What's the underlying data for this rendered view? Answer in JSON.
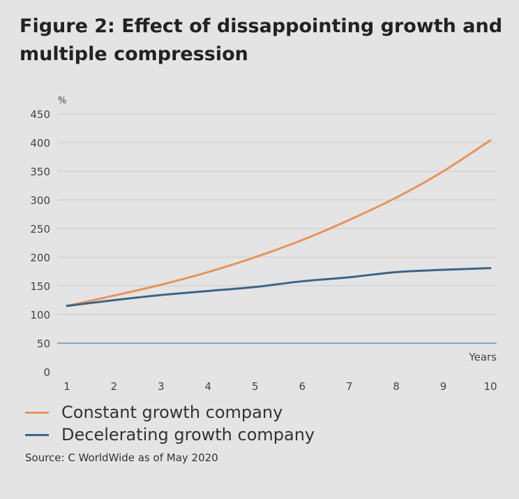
{
  "title": "Figure 2: Effect of dissappointing growth and multiple compression",
  "source": "Source: C WorldWide as of May 2020",
  "chart_data": {
    "type": "line",
    "title": "Figure 2: Effect of dissappointing growth and multiple compression",
    "ylabel": "%",
    "xlabel": "Years",
    "ylim": [
      0,
      450
    ],
    "yticks": [
      0,
      50,
      100,
      150,
      200,
      250,
      300,
      350,
      400,
      450
    ],
    "x": [
      1,
      2,
      3,
      4,
      5,
      6,
      7,
      8,
      9,
      10
    ],
    "grid": true,
    "legend_position": "bottom",
    "series": [
      {
        "name": "Constant growth company",
        "color": "#e8935c",
        "values": [
          115,
          133,
          152,
          174,
          200,
          230,
          265,
          304,
          350,
          404
        ]
      },
      {
        "name": "Decelerating growth company",
        "color": "#3d6485",
        "values": [
          115,
          125,
          134,
          141,
          148,
          158,
          165,
          174,
          178,
          181
        ]
      }
    ],
    "colors": {
      "gridline": "#cfcfcf",
      "baseline": "#8aa6bd"
    }
  }
}
